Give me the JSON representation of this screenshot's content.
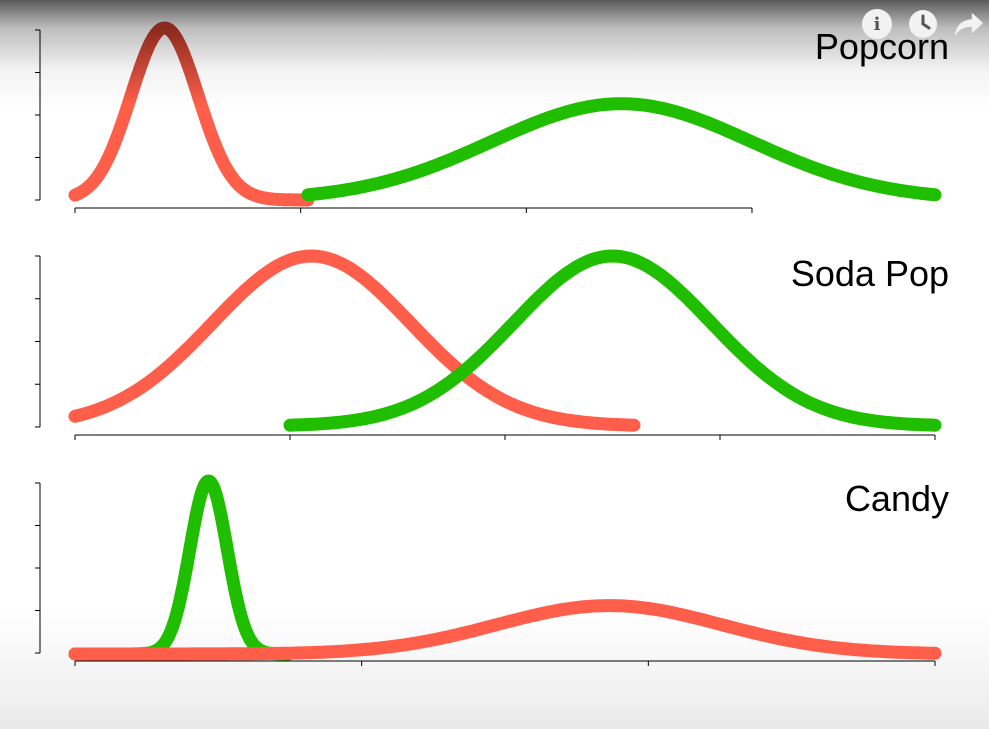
{
  "chart_data": [
    {
      "type": "line",
      "title": "Popcorn",
      "ylim": [
        0,
        1.05
      ],
      "series": [
        {
          "color": "#ff5f4a",
          "x": [
            0,
            5.2
          ],
          "mean": 2,
          "sd": 0.75,
          "amplitude": 1.0,
          "highlight_peak": true
        },
        {
          "color": "#1fbf00",
          "x": [
            5.2,
            19.2
          ],
          "mean": 12.2,
          "sd": 2.9,
          "amplitude": 0.56
        }
      ],
      "xlim": [
        0,
        19.2
      ],
      "xticks": 4,
      "yticks": 5
    },
    {
      "type": "line",
      "title": "Soda Pop",
      "ylim": [
        0,
        1.05
      ],
      "series": [
        {
          "color": "#ff5f4a",
          "x": [
            0,
            13
          ],
          "mean": 5.5,
          "sd": 2.3,
          "amplitude": 1.0
        },
        {
          "color": "#1fbf00",
          "x": [
            5,
            20
          ],
          "mean": 12.5,
          "sd": 2.3,
          "amplitude": 1.0
        }
      ],
      "xlim": [
        0,
        20
      ],
      "xticks": 5,
      "yticks": 5
    },
    {
      "type": "line",
      "title": "Candy",
      "ylim": [
        0,
        1.05
      ],
      "series": [
        {
          "color": "#1fbf00",
          "x": [
            0,
            8
          ],
          "mean": 5,
          "sd": 0.7,
          "amplitude": 1.0
        },
        {
          "color": "#ff5f4a",
          "x": [
            0,
            32.2
          ],
          "mean": 20,
          "sd": 4.2,
          "amplitude": 0.28
        }
      ],
      "xlim": [
        0,
        32.2
      ],
      "xticks": 4,
      "yticks": 5
    }
  ],
  "colors": {
    "red": "#ff5f4a",
    "green": "#1fbf00",
    "axis": "#000000"
  },
  "icons": [
    "info-icon",
    "clock-icon",
    "share-icon"
  ]
}
